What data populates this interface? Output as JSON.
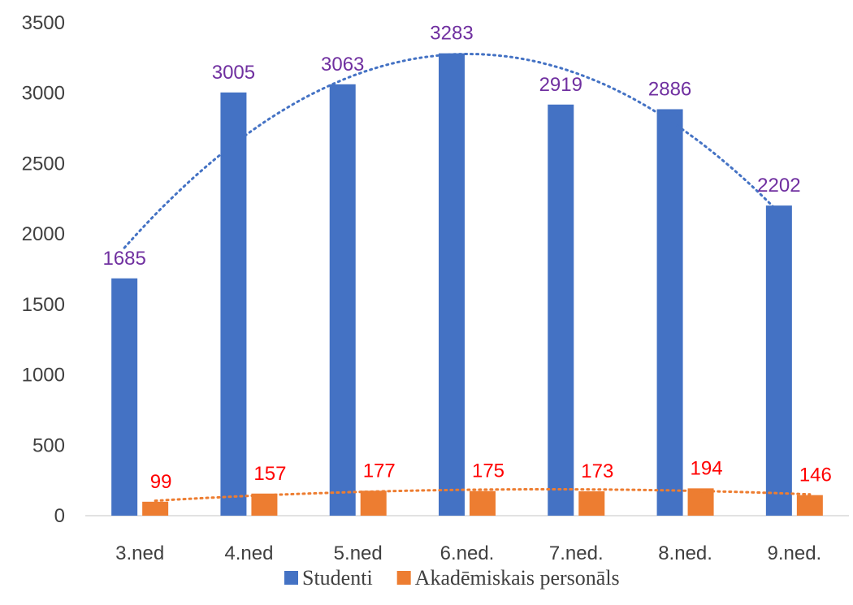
{
  "chart_data": {
    "type": "bar",
    "categories": [
      "3.ned",
      "4.ned",
      "5.ned",
      "6.ned.",
      "7.ned.",
      "8.ned.",
      "9.ned."
    ],
    "series": [
      {
        "name": "Studenti",
        "values": [
          1685,
          3005,
          3063,
          3283,
          2919,
          2886,
          2202
        ],
        "color": "#4472C4",
        "label_color": "#7030A0"
      },
      {
        "name": "Akadēmiskais personāls",
        "values": [
          99,
          157,
          177,
          175,
          173,
          194,
          146
        ],
        "color": "#ED7D31",
        "label_color": "#FF0000"
      }
    ],
    "trendlines": [
      {
        "series": "Studenti",
        "type": "polynomial",
        "style": "dotted",
        "color": "#4472C4"
      },
      {
        "series": "Akadēmiskais personāls",
        "type": "polynomial",
        "style": "dotted",
        "color": "#ED7D31"
      }
    ],
    "ylim": [
      0,
      3500
    ],
    "yticks": [
      0,
      500,
      1000,
      1500,
      2000,
      2500,
      3000,
      3500
    ],
    "grid": false,
    "legend": "bottom"
  }
}
